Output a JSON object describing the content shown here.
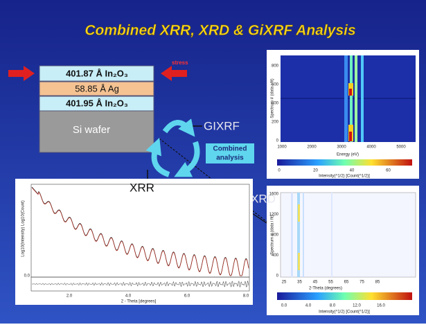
{
  "title": "Combined XRR, XRD & GiXRF Analysis",
  "stack": {
    "layers": [
      "401.87 Å In₂O₃",
      "58.85 Å Ag",
      "401.95 Å In₂O₃"
    ],
    "substrate": "Si wafer",
    "stress": "stress"
  },
  "labels": {
    "gixrf": "GIXRF",
    "xrr": "XRR",
    "xrd": "XRD",
    "combined": [
      "Combined",
      "analysis"
    ]
  },
  "gixrf_panel": {
    "ylabel": "Spectrum # (data i fit)",
    "yticks": [
      "0",
      "200",
      "400",
      "600",
      "800"
    ],
    "xticks": [
      "1000",
      "2000",
      "3000",
      "4000",
      "5000"
    ],
    "xlabel": "Energy (eV)",
    "cbar_ticks": [
      "0",
      "20",
      "40",
      "60"
    ],
    "cbar_label": "Intensity(^1/2) [Count(^1/2)]"
  },
  "xrd_panel": {
    "ylabel": "Spectrum # (data i fit)",
    "yticks": [
      "0",
      "400",
      "800",
      "1200",
      "1600"
    ],
    "xticks": [
      "25",
      "35",
      "45",
      "55",
      "65",
      "75",
      "85"
    ],
    "xlabel": "2-Theta (degrees)",
    "cbar_ticks": [
      "0.0",
      "4.0",
      "8.0",
      "12.0",
      "16.0"
    ],
    "cbar_label": "Intensity(^1/2) [Count(^1/2)]"
  },
  "xrr_panel": {
    "ylabel": "Log10(Intensity) Log10(Count)",
    "yticks": [
      "0.0"
    ],
    "xticks": [
      "2.0",
      "4.0",
      "6.0",
      "8.0"
    ],
    "xlabel": "2 - Theta [degrees]"
  }
}
